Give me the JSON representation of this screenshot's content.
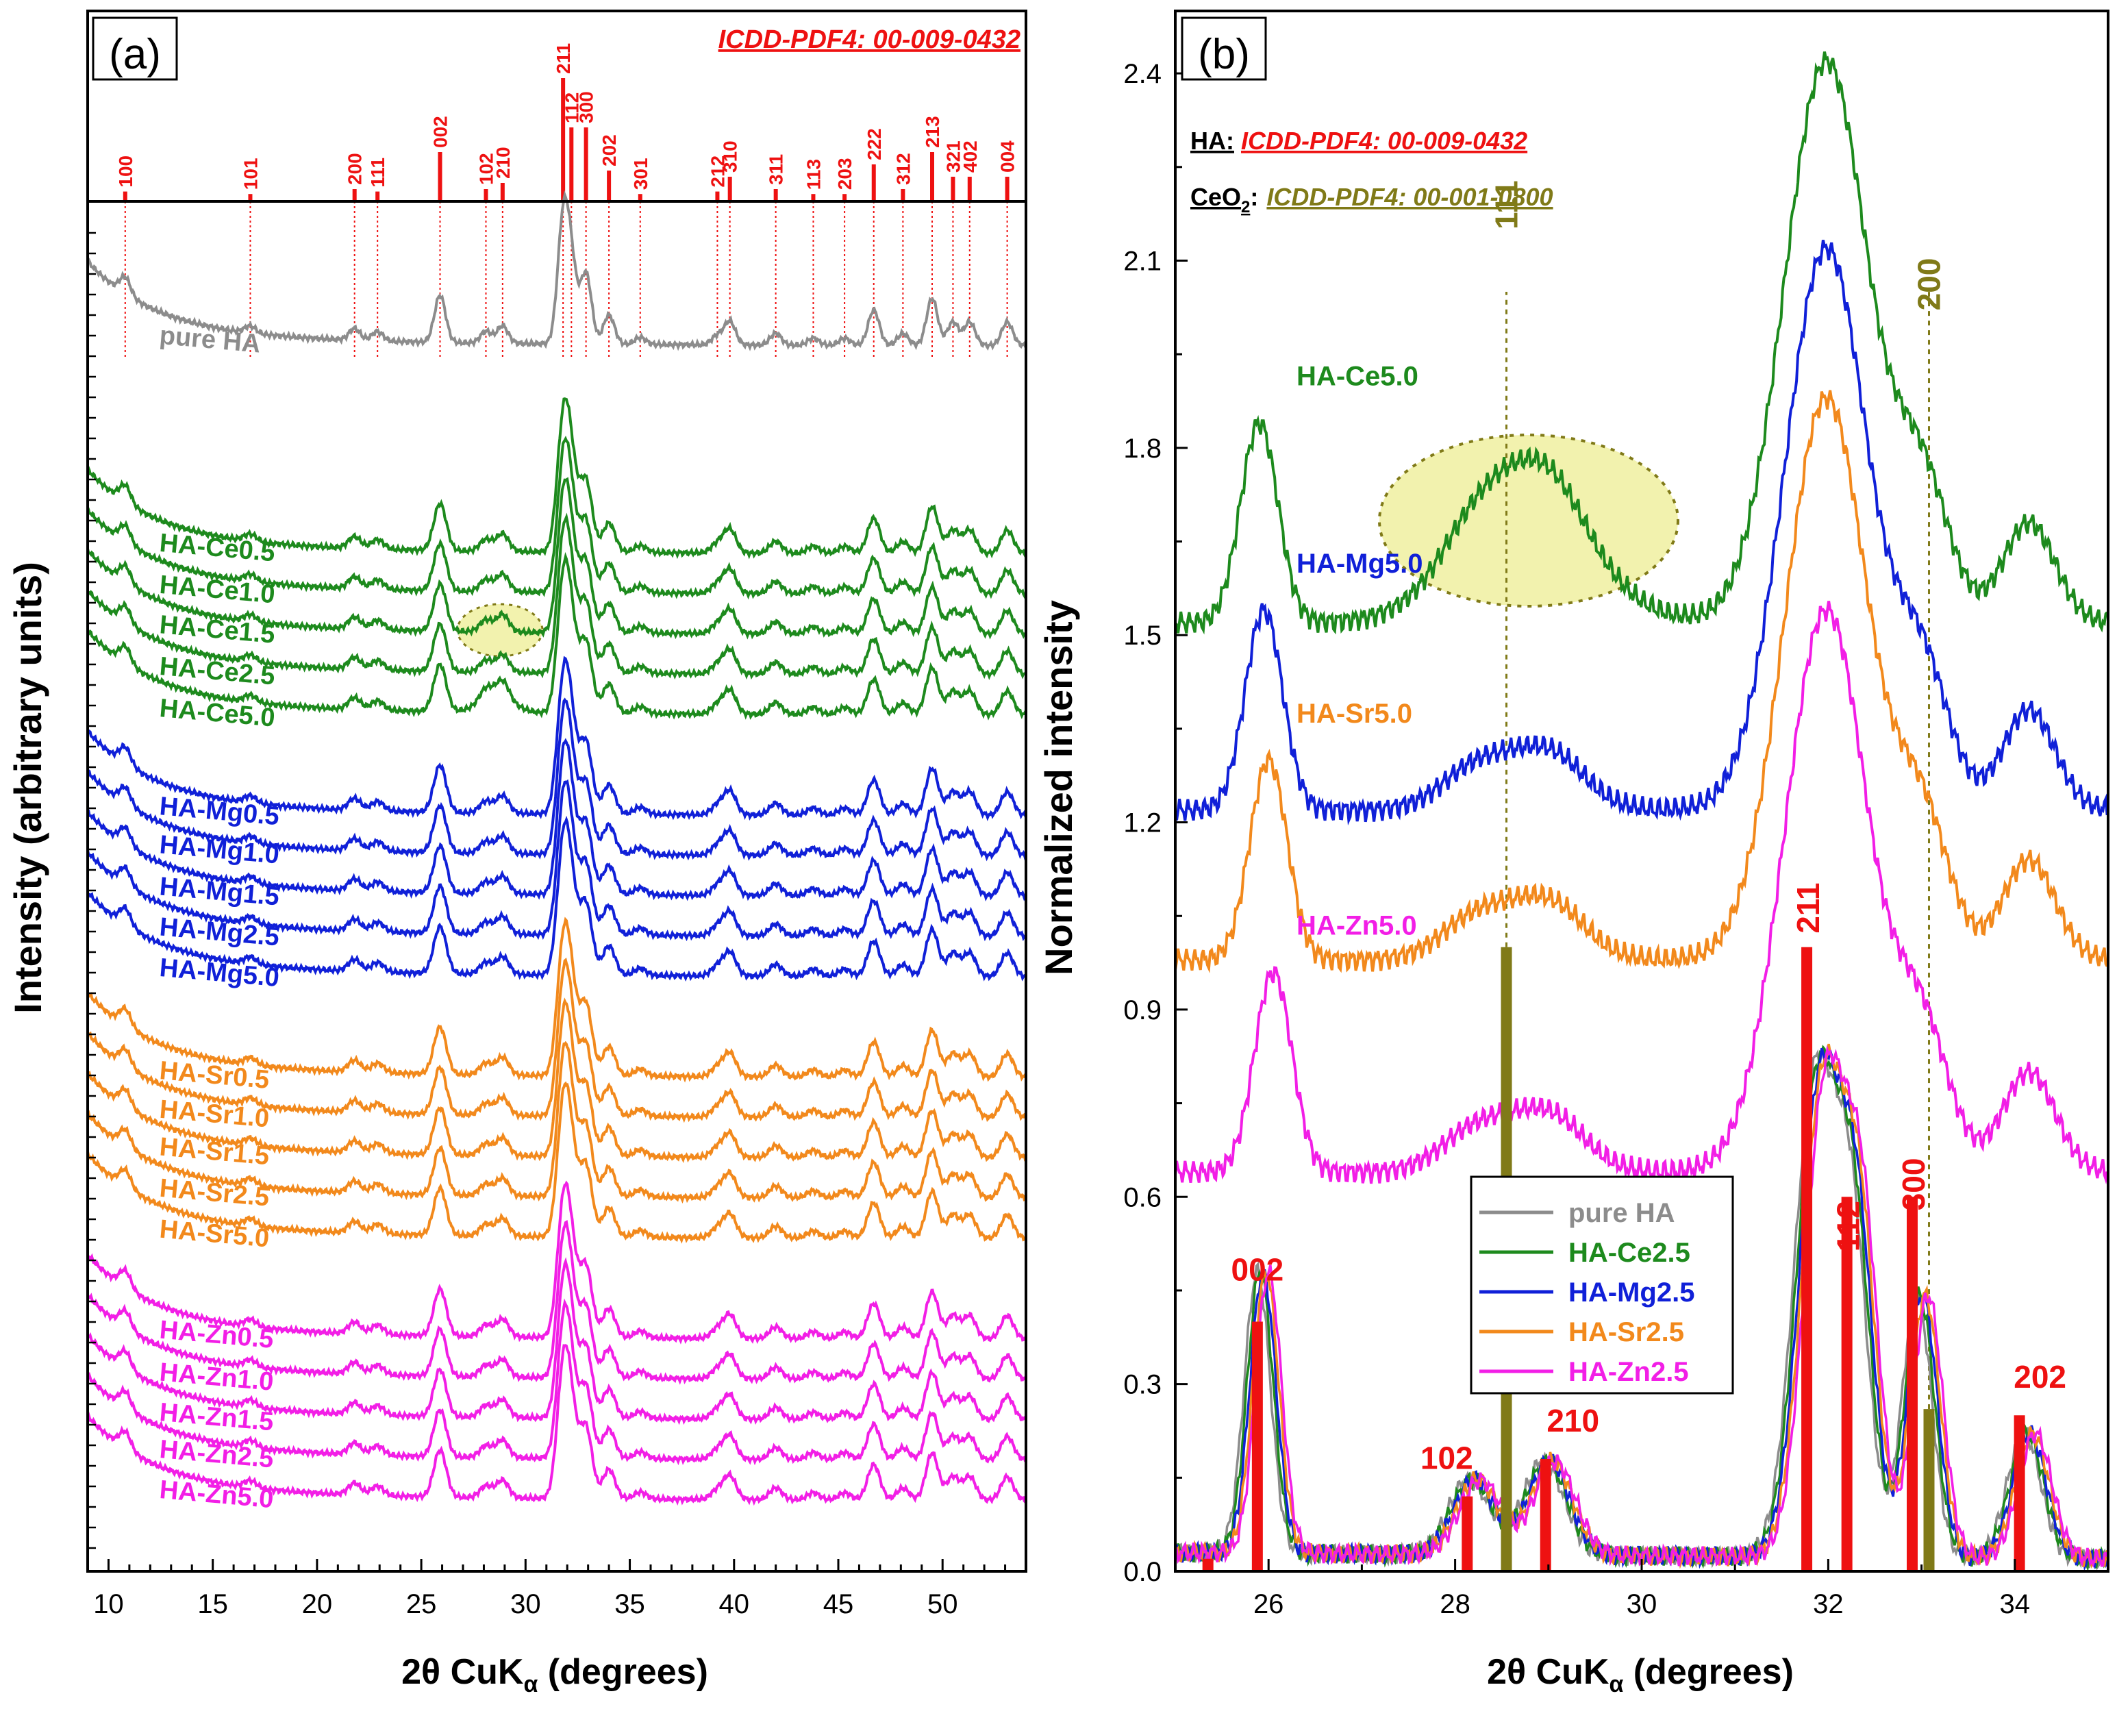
{
  "colors": {
    "grey": "#8c8c8c",
    "green": "#1d8a1d",
    "blue": "#1020d8",
    "orange": "#f2891c",
    "magenta": "#f21ee6",
    "red": "#ee1111",
    "olive": "#807a18",
    "highlight": "#f0f0a0"
  },
  "chart_data": [
    {
      "type": "line",
      "panel_label": "(a)",
      "title": "ICDD-PDF4: 00-009-0432",
      "xlabel": "2θ CuK",
      "xlabel_sub": "α",
      "xlabel_unit": " (degrees)",
      "ylabel": "Intensity (arbitrary units)",
      "xlim": [
        9,
        54
      ],
      "xticks": [
        10,
        15,
        20,
        25,
        30,
        35,
        40,
        45,
        50
      ],
      "reference_peaks": [
        {
          "hkl": "100",
          "x": 10.8,
          "h": 0.08
        },
        {
          "hkl": "101",
          "x": 16.8,
          "h": 0.06
        },
        {
          "hkl": "200",
          "x": 21.8,
          "h": 0.1
        },
        {
          "hkl": "111",
          "x": 22.9,
          "h": 0.08
        },
        {
          "hkl": "002",
          "x": 25.9,
          "h": 0.4
        },
        {
          "hkl": "102",
          "x": 28.1,
          "h": 0.1
        },
        {
          "hkl": "210",
          "x": 28.9,
          "h": 0.15
        },
        {
          "hkl": "211",
          "x": 31.8,
          "h": 1.0
        },
        {
          "hkl": "112",
          "x": 32.2,
          "h": 0.6
        },
        {
          "hkl": "300",
          "x": 32.9,
          "h": 0.6
        },
        {
          "hkl": "202",
          "x": 34.0,
          "h": 0.25
        },
        {
          "hkl": "301",
          "x": 35.5,
          "h": 0.06
        },
        {
          "hkl": "212",
          "x": 39.2,
          "h": 0.08
        },
        {
          "hkl": "310",
          "x": 39.8,
          "h": 0.2
        },
        {
          "hkl": "311",
          "x": 42.0,
          "h": 0.1
        },
        {
          "hkl": "113",
          "x": 43.8,
          "h": 0.06
        },
        {
          "hkl": "203",
          "x": 45.3,
          "h": 0.06
        },
        {
          "hkl": "222",
          "x": 46.7,
          "h": 0.3
        },
        {
          "hkl": "312",
          "x": 48.1,
          "h": 0.1
        },
        {
          "hkl": "213",
          "x": 49.5,
          "h": 0.4
        },
        {
          "hkl": "321",
          "x": 50.5,
          "h": 0.2
        },
        {
          "hkl": "402",
          "x": 51.3,
          "h": 0.2
        },
        {
          "hkl": "004",
          "x": 53.1,
          "h": 0.2
        }
      ],
      "series": [
        {
          "name": "pure HA",
          "color_key": "grey",
          "offset": 0.0
        },
        {
          "name": "HA-Ce0.5",
          "color_key": "green",
          "offset": -1.55
        },
        {
          "name": "HA-Ce1.0",
          "color_key": "green",
          "offset": -1.85
        },
        {
          "name": "HA-Ce1.5",
          "color_key": "green",
          "offset": -2.15
        },
        {
          "name": "HA-Ce2.5",
          "color_key": "green",
          "offset": -2.45
        },
        {
          "name": "HA-Ce5.0",
          "color_key": "green",
          "offset": -2.75
        },
        {
          "name": "HA-Mg0.5",
          "color_key": "blue",
          "offset": -3.5
        },
        {
          "name": "HA-Mg1.0",
          "color_key": "blue",
          "offset": -3.8
        },
        {
          "name": "HA-Mg1.5",
          "color_key": "blue",
          "offset": -4.1
        },
        {
          "name": "HA-Mg2.5",
          "color_key": "blue",
          "offset": -4.4
        },
        {
          "name": "HA-Mg5.0",
          "color_key": "blue",
          "offset": -4.7
        },
        {
          "name": "HA-Sr0.5",
          "color_key": "orange",
          "offset": -5.45
        },
        {
          "name": "HA-Sr1.0",
          "color_key": "orange",
          "offset": -5.75
        },
        {
          "name": "HA-Sr1.5",
          "color_key": "orange",
          "offset": -6.05
        },
        {
          "name": "HA-Sr2.5",
          "color_key": "orange",
          "offset": -6.35
        },
        {
          "name": "HA-Sr5.0",
          "color_key": "orange",
          "offset": -6.65
        },
        {
          "name": "HA-Zn0.5",
          "color_key": "magenta",
          "offset": -7.4
        },
        {
          "name": "HA-Zn1.0",
          "color_key": "magenta",
          "offset": -7.7
        },
        {
          "name": "HA-Zn1.5",
          "color_key": "magenta",
          "offset": -8.0
        },
        {
          "name": "HA-Zn2.5",
          "color_key": "magenta",
          "offset": -8.3
        },
        {
          "name": "HA-Zn5.0",
          "color_key": "magenta",
          "offset": -8.6
        }
      ]
    },
    {
      "type": "line",
      "panel_label": "(b)",
      "annotations": {
        "ha_label": "HA:",
        "ha_ref": "ICDD-PDF4: 00-009-0432",
        "ceo2_label_main": "CeO",
        "ceo2_label_sub": "2",
        "ceo2_label_colon": ":",
        "ceo2_ref": "ICDD-PDF4: 00-001-0800"
      },
      "xlabel": "2θ CuK",
      "xlabel_sub": "α",
      "xlabel_unit": " (degrees)",
      "ylabel": "Normalized intensity",
      "xlim": [
        25,
        35
      ],
      "ylim": [
        0,
        2.5
      ],
      "xticks": [
        26,
        28,
        30,
        32,
        34
      ],
      "yticks": [
        0.0,
        0.3,
        0.6,
        0.9,
        1.2,
        1.5,
        1.8,
        2.1,
        2.4
      ],
      "ytick_labels": [
        "0.0",
        "0.3",
        "0.6",
        "0.9",
        "1.2",
        "1.5",
        "1.8",
        "2.1",
        "2.4"
      ],
      "ha_reference_bars": [
        {
          "hkl": "",
          "x": 25.35,
          "h": 0.02
        },
        {
          "hkl": "002",
          "x": 25.88,
          "h": 0.4
        },
        {
          "hkl": "102",
          "x": 28.13,
          "h": 0.12
        },
        {
          "hkl": "210",
          "x": 28.97,
          "h": 0.18
        },
        {
          "hkl": "211",
          "x": 31.77,
          "h": 1.0
        },
        {
          "hkl": "112",
          "x": 32.2,
          "h": 0.6
        },
        {
          "hkl": "300",
          "x": 32.9,
          "h": 0.6
        },
        {
          "hkl": "202",
          "x": 34.05,
          "h": 0.25
        }
      ],
      "ceo2_reference_bars": [
        {
          "hkl": "111",
          "x": 28.55,
          "h": 1.0
        },
        {
          "hkl": "200",
          "x": 33.08,
          "h": 0.26
        }
      ],
      "stacked_series": [
        {
          "name": "HA-Ce5.0",
          "color_key": "green",
          "offset": 1.52,
          "ceo2": true
        },
        {
          "name": "HA-Mg5.0",
          "color_key": "blue",
          "offset": 1.22
        },
        {
          "name": "HA-Sr5.0",
          "color_key": "orange",
          "offset": 0.98
        },
        {
          "name": "HA-Zn5.0",
          "color_key": "magenta",
          "offset": 0.64
        }
      ],
      "legend": {
        "position": "lower-middle",
        "entries": [
          {
            "name": "pure HA",
            "color_key": "grey"
          },
          {
            "name": "HA-Ce2.5",
            "color_key": "green"
          },
          {
            "name": "HA-Mg2.5",
            "color_key": "blue"
          },
          {
            "name": "HA-Sr2.5",
            "color_key": "orange"
          },
          {
            "name": "HA-Zn2.5",
            "color_key": "magenta"
          }
        ]
      }
    }
  ]
}
